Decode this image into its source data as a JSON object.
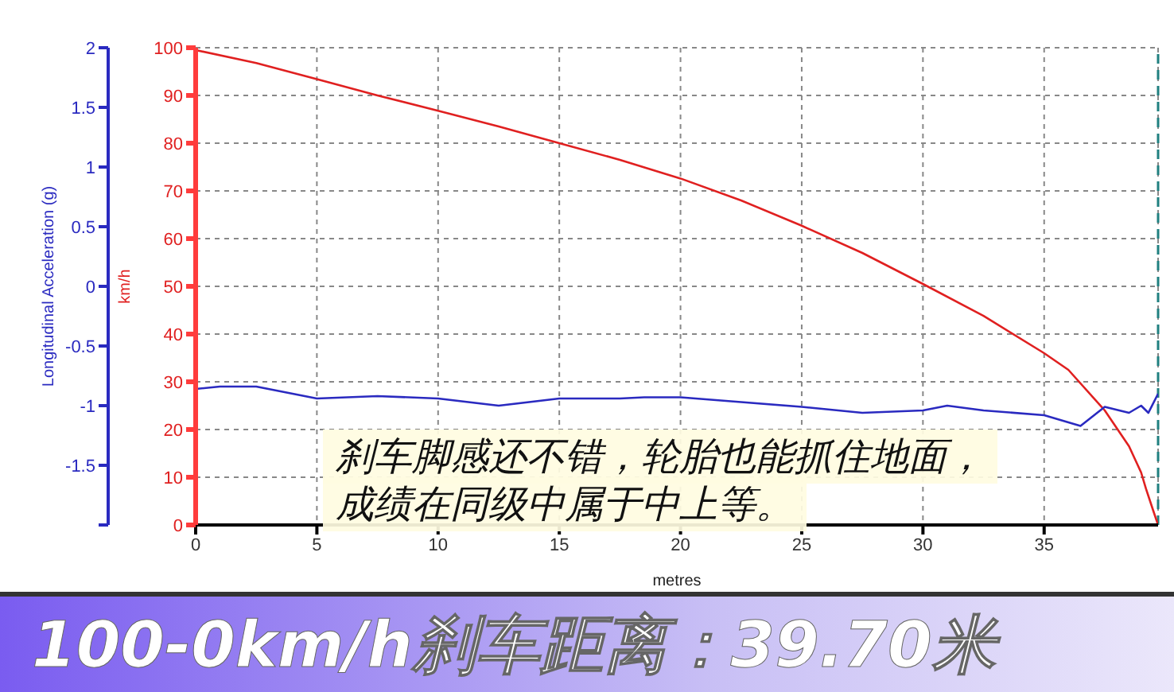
{
  "chart_data": {
    "type": "line",
    "title": "100-0km/h刹车距离：39.70米",
    "xlabel": "metres",
    "ylabel": "km/h",
    "y2label": "Longitudinal Acceleration (g)",
    "xlim": [
      0,
      39.7
    ],
    "xticks": [
      0,
      5,
      10,
      15,
      20,
      25,
      30,
      35
    ],
    "ylim": [
      0,
      100
    ],
    "yticks": [
      0,
      10,
      20,
      30,
      40,
      50,
      60,
      70,
      80,
      90,
      100
    ],
    "y2lim": [
      -2,
      2
    ],
    "y2ticks": [
      {
        "value": -2,
        "label": null
      },
      -1.5,
      -1,
      -0.5,
      0,
      0.5,
      1,
      1.5,
      2
    ],
    "grid": true,
    "marker": "none",
    "line_style": "solid",
    "series": [
      {
        "color": "#e02020",
        "x": [
          0,
          2.5,
          5,
          7.5,
          10,
          12.5,
          15,
          17.5,
          20,
          22.5,
          25,
          27.5,
          30,
          32.5,
          35,
          36,
          37.5,
          38.5,
          39,
          39.2,
          39.5,
          39.7
        ],
        "values": [
          99.5,
          96.8,
          93.4,
          90,
          86.8,
          83.5,
          80,
          76.5,
          72.6,
          68,
          62.7,
          57,
          50.5,
          43.8,
          36,
          32.5,
          24,
          16.5,
          11,
          7.6,
          3,
          0
        ]
      },
      {
        "color": "#2a2ac0",
        "axis": "y2",
        "x": [
          0,
          1,
          2.5,
          5,
          7.5,
          10,
          12.5,
          15,
          17.5,
          18.5,
          20,
          22.5,
          25,
          27.5,
          30,
          31,
          32.5,
          35,
          36.5,
          37.5,
          38.5,
          39,
          39.3,
          39.7
        ],
        "values": [
          -0.86,
          -0.84,
          -0.84,
          -0.94,
          -0.92,
          -0.94,
          -1,
          -0.94,
          -0.94,
          -0.93,
          -0.93,
          -0.97,
          -1.01,
          -1.06,
          -1.04,
          -1,
          -1.04,
          -1.08,
          -1.17,
          -1.01,
          -1.06,
          -1,
          -1.06,
          -0.9
        ]
      }
    ],
    "ref_lines": [
      {
        "axis": "x",
        "value": 39.7,
        "color": "#208080",
        "line_style": "dashed"
      }
    ],
    "annotations": [
      "刹车脚感还不错，轮胎也能抓住地面，",
      "成绩在同级中属于中上等。"
    ]
  }
}
